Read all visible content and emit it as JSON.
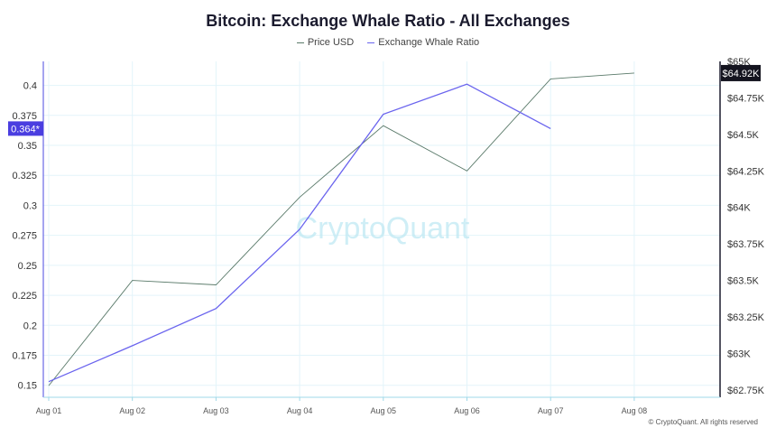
{
  "chart_data": {
    "type": "line",
    "title": "Bitcoin: Exchange Whale Ratio - All Exchanges",
    "watermark": "CryptoQuant",
    "copyright": "© CryptoQuant. All rights reserved",
    "categories": [
      "Aug 01",
      "Aug 02",
      "Aug 03",
      "Aug 04",
      "Aug 05",
      "Aug 06",
      "Aug 07",
      "Aug 08"
    ],
    "series": [
      {
        "name": "Price USD",
        "axis": "right",
        "color": "#5a7a6a",
        "values": [
          62780,
          63500,
          63470,
          64070,
          64560,
          64250,
          64880,
          64920
        ],
        "marker_label": "$64.92K"
      },
      {
        "name": "Exchange Whale Ratio",
        "axis": "left",
        "color": "#6a64ee",
        "values": [
          0.153,
          0.183,
          0.214,
          0.28,
          0.376,
          0.401,
          null,
          0.364
        ],
        "marker_label": "0.364*"
      }
    ],
    "left_axis": {
      "ylim": [
        0.14,
        0.42
      ],
      "ticks": [
        0.15,
        0.175,
        0.2,
        0.225,
        0.25,
        0.275,
        0.3,
        0.325,
        0.35,
        0.375,
        0.4
      ],
      "tick_labels": [
        "0.15",
        "0.175",
        "0.2",
        "0.225",
        "0.25",
        "0.275",
        "0.3",
        "0.325",
        "0.35",
        "0.375",
        "0.4"
      ]
    },
    "right_axis": {
      "ylim": [
        62700,
        65000
      ],
      "ticks": [
        62750,
        63000,
        63250,
        63500,
        63750,
        64000,
        64250,
        64500,
        64750,
        65000
      ],
      "tick_labels": [
        "$62.75K",
        "$63K",
        "$63.25K",
        "$63.5K",
        "$63.75K",
        "$64K",
        "$64.25K",
        "$64.5K",
        "$64.75K",
        "$65K"
      ]
    },
    "grid": true,
    "legend_position": "top-center"
  }
}
